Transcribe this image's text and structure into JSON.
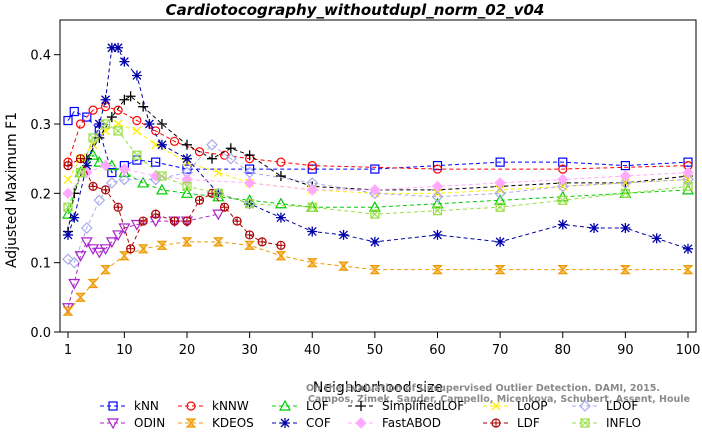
{
  "chart_data": {
    "type": "line",
    "title": "Cardiotocography_withoutdupl_norm_02_v04",
    "xlabel": "Neighborhood size",
    "ylabel": "Adjusted Maximum F1",
    "xlim": [
      1,
      100
    ],
    "ylim": [
      0.0,
      0.45
    ],
    "x_ticks": [
      1,
      10,
      20,
      30,
      40,
      50,
      60,
      70,
      80,
      90,
      100
    ],
    "y_ticks": [
      "0.0",
      "0.1",
      "0.2",
      "0.3",
      "0.4"
    ],
    "grid": false,
    "legend_position": "bottom",
    "watermark": [
      "Campos, Zimek, Sander, Campello, Micenkova, Schubert, Assent, Houle",
      "On the Evaluation of Unsupervised Outlier Detection. DAMI, 2015."
    ],
    "series": [
      {
        "name": "kNN",
        "color": "#0000ff",
        "marker": "square",
        "points": [
          [
            1,
            0.305
          ],
          [
            2,
            0.318
          ],
          [
            4,
            0.31
          ],
          [
            6,
            0.29
          ],
          [
            8,
            0.23
          ],
          [
            10,
            0.24
          ],
          [
            12,
            0.248
          ],
          [
            15,
            0.245
          ],
          [
            20,
            0.235
          ],
          [
            30,
            0.235
          ],
          [
            40,
            0.235
          ],
          [
            50,
            0.235
          ],
          [
            60,
            0.24
          ],
          [
            70,
            0.245
          ],
          [
            80,
            0.245
          ],
          [
            90,
            0.24
          ],
          [
            100,
            0.245
          ]
        ]
      },
      {
        "name": "kNNW",
        "color": "#ff0000",
        "marker": "circle",
        "points": [
          [
            1,
            0.245
          ],
          [
            3,
            0.3
          ],
          [
            5,
            0.32
          ],
          [
            7,
            0.325
          ],
          [
            9,
            0.32
          ],
          [
            12,
            0.305
          ],
          [
            15,
            0.29
          ],
          [
            18,
            0.275
          ],
          [
            22,
            0.26
          ],
          [
            26,
            0.255
          ],
          [
            30,
            0.25
          ],
          [
            35,
            0.245
          ],
          [
            40,
            0.24
          ],
          [
            60,
            0.235
          ],
          [
            80,
            0.235
          ],
          [
            100,
            0.24
          ]
        ]
      },
      {
        "name": "LOF",
        "color": "#00cc00",
        "marker": "triangle",
        "points": [
          [
            1,
            0.17
          ],
          [
            3,
            0.23
          ],
          [
            5,
            0.255
          ],
          [
            6,
            0.245
          ],
          [
            8,
            0.24
          ],
          [
            10,
            0.23
          ],
          [
            13,
            0.215
          ],
          [
            16,
            0.205
          ],
          [
            20,
            0.2
          ],
          [
            25,
            0.195
          ],
          [
            30,
            0.19
          ],
          [
            35,
            0.185
          ],
          [
            40,
            0.18
          ],
          [
            50,
            0.18
          ],
          [
            60,
            0.185
          ],
          [
            70,
            0.19
          ],
          [
            80,
            0.195
          ],
          [
            90,
            0.2
          ],
          [
            100,
            0.205
          ]
        ]
      },
      {
        "name": "SimplifiedLOF",
        "color": "#000000",
        "marker": "plus",
        "points": [
          [
            1,
            0.145
          ],
          [
            2,
            0.2
          ],
          [
            4,
            0.25
          ],
          [
            6,
            0.28
          ],
          [
            8,
            0.31
          ],
          [
            10,
            0.335
          ],
          [
            11,
            0.34
          ],
          [
            13,
            0.325
          ],
          [
            16,
            0.3
          ],
          [
            20,
            0.27
          ],
          [
            24,
            0.25
          ],
          [
            27,
            0.265
          ],
          [
            30,
            0.255
          ],
          [
            35,
            0.225
          ],
          [
            40,
            0.21
          ],
          [
            50,
            0.205
          ],
          [
            60,
            0.205
          ],
          [
            70,
            0.21
          ],
          [
            80,
            0.215
          ],
          [
            90,
            0.215
          ],
          [
            100,
            0.225
          ]
        ]
      },
      {
        "name": "LoOP",
        "color": "#ffee00",
        "marker": "x",
        "points": [
          [
            1,
            0.22
          ],
          [
            3,
            0.25
          ],
          [
            5,
            0.27
          ],
          [
            7,
            0.29
          ],
          [
            9,
            0.3
          ],
          [
            12,
            0.29
          ],
          [
            15,
            0.27
          ],
          [
            20,
            0.245
          ],
          [
            25,
            0.23
          ],
          [
            30,
            0.215
          ],
          [
            40,
            0.205
          ],
          [
            50,
            0.2
          ],
          [
            60,
            0.2
          ],
          [
            70,
            0.205
          ],
          [
            80,
            0.21
          ],
          [
            90,
            0.215
          ],
          [
            100,
            0.22
          ]
        ]
      },
      {
        "name": "LDOF",
        "color": "#aaaaee",
        "marker": "diamond",
        "points": [
          [
            1,
            0.105
          ],
          [
            2,
            0.1
          ],
          [
            4,
            0.15
          ],
          [
            6,
            0.19
          ],
          [
            8,
            0.215
          ],
          [
            10,
            0.22
          ],
          [
            15,
            0.22
          ],
          [
            20,
            0.23
          ],
          [
            24,
            0.27
          ],
          [
            27,
            0.25
          ],
          [
            30,
            0.23
          ],
          [
            40,
            0.215
          ],
          [
            50,
            0.2
          ],
          [
            60,
            0.195
          ],
          [
            70,
            0.2
          ],
          [
            80,
            0.21
          ],
          [
            90,
            0.215
          ],
          [
            100,
            0.22
          ]
        ]
      },
      {
        "name": "ODIN",
        "color": "#aa22cc",
        "marker": "triangle-down",
        "points": [
          [
            1,
            0.035
          ],
          [
            2,
            0.07
          ],
          [
            3,
            0.11
          ],
          [
            4,
            0.13
          ],
          [
            5,
            0.12
          ],
          [
            6,
            0.115
          ],
          [
            7,
            0.12
          ],
          [
            8,
            0.13
          ],
          [
            9,
            0.14
          ],
          [
            10,
            0.15
          ],
          [
            12,
            0.155
          ],
          [
            15,
            0.16
          ],
          [
            18,
            0.16
          ],
          [
            20,
            0.16
          ],
          [
            25,
            0.17
          ]
        ]
      },
      {
        "name": "KDEOS",
        "color": "#ee9900",
        "marker": "hourglass",
        "points": [
          [
            1,
            0.03
          ],
          [
            3,
            0.05
          ],
          [
            5,
            0.07
          ],
          [
            7,
            0.09
          ],
          [
            10,
            0.11
          ],
          [
            13,
            0.12
          ],
          [
            16,
            0.125
          ],
          [
            20,
            0.13
          ],
          [
            25,
            0.13
          ],
          [
            30,
            0.125
          ],
          [
            35,
            0.11
          ],
          [
            40,
            0.1
          ],
          [
            45,
            0.095
          ],
          [
            50,
            0.09
          ],
          [
            60,
            0.09
          ],
          [
            70,
            0.09
          ],
          [
            80,
            0.09
          ],
          [
            90,
            0.09
          ],
          [
            100,
            0.09
          ]
        ]
      },
      {
        "name": "COF",
        "color": "#0000aa",
        "marker": "asterisk",
        "points": [
          [
            1,
            0.14
          ],
          [
            2,
            0.165
          ],
          [
            4,
            0.24
          ],
          [
            6,
            0.3
          ],
          [
            7,
            0.335
          ],
          [
            8,
            0.41
          ],
          [
            9,
            0.41
          ],
          [
            10,
            0.39
          ],
          [
            12,
            0.37
          ],
          [
            14,
            0.3
          ],
          [
            16,
            0.27
          ],
          [
            20,
            0.25
          ],
          [
            25,
            0.2
          ],
          [
            30,
            0.185
          ],
          [
            35,
            0.165
          ],
          [
            40,
            0.145
          ],
          [
            45,
            0.14
          ],
          [
            50,
            0.13
          ],
          [
            60,
            0.14
          ],
          [
            70,
            0.13
          ],
          [
            80,
            0.155
          ],
          [
            85,
            0.15
          ],
          [
            90,
            0.15
          ],
          [
            95,
            0.135
          ],
          [
            100,
            0.12
          ]
        ]
      },
      {
        "name": "FastABOD",
        "color": "#ffaaff",
        "marker": "diamond-filled",
        "points": [
          [
            1,
            0.2
          ],
          [
            4,
            0.23
          ],
          [
            7,
            0.24
          ],
          [
            10,
            0.235
          ],
          [
            15,
            0.225
          ],
          [
            20,
            0.22
          ],
          [
            30,
            0.215
          ],
          [
            40,
            0.205
          ],
          [
            50,
            0.205
          ],
          [
            60,
            0.21
          ],
          [
            70,
            0.215
          ],
          [
            80,
            0.22
          ],
          [
            90,
            0.225
          ],
          [
            100,
            0.23
          ]
        ]
      },
      {
        "name": "LDF",
        "color": "#aa0000",
        "marker": "circle-plus",
        "points": [
          [
            1,
            0.24
          ],
          [
            3,
            0.25
          ],
          [
            5,
            0.21
          ],
          [
            7,
            0.205
          ],
          [
            9,
            0.18
          ],
          [
            11,
            0.12
          ],
          [
            13,
            0.16
          ],
          [
            15,
            0.17
          ],
          [
            18,
            0.16
          ],
          [
            20,
            0.16
          ],
          [
            22,
            0.19
          ],
          [
            24,
            0.2
          ],
          [
            26,
            0.18
          ],
          [
            28,
            0.16
          ],
          [
            30,
            0.14
          ],
          [
            32,
            0.13
          ],
          [
            35,
            0.125
          ]
        ]
      },
      {
        "name": "INFLO",
        "color": "#99dd44",
        "marker": "square-x",
        "points": [
          [
            1,
            0.18
          ],
          [
            3,
            0.23
          ],
          [
            5,
            0.28
          ],
          [
            7,
            0.3
          ],
          [
            9,
            0.29
          ],
          [
            12,
            0.255
          ],
          [
            16,
            0.225
          ],
          [
            20,
            0.21
          ],
          [
            25,
            0.2
          ],
          [
            30,
            0.185
          ],
          [
            40,
            0.18
          ],
          [
            50,
            0.17
          ],
          [
            60,
            0.175
          ],
          [
            70,
            0.18
          ],
          [
            80,
            0.19
          ],
          [
            90,
            0.2
          ],
          [
            100,
            0.21
          ]
        ]
      }
    ]
  }
}
